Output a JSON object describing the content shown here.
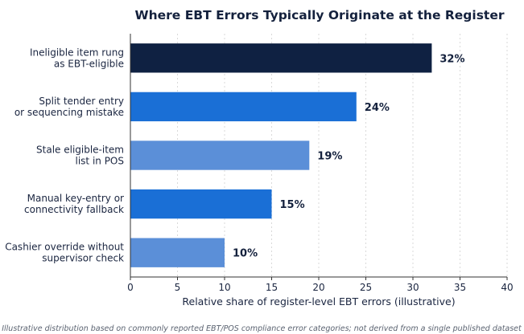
{
  "chart_data": {
    "type": "bar",
    "orientation": "horizontal",
    "title": "Where EBT Errors Typically Originate at the Register",
    "xlabel": "Relative share of register-level EBT errors (illustrative)",
    "ylabel": "",
    "xlim": [
      0,
      40
    ],
    "xticks": [
      0,
      5,
      10,
      15,
      20,
      25,
      30,
      35,
      40
    ],
    "grid": "vertical",
    "categories": [
      [
        "Ineligible item rung",
        "as EBT-eligible"
      ],
      [
        "Split tender entry",
        "or sequencing mistake"
      ],
      [
        "Stale eligible-item",
        "list in POS"
      ],
      [
        "Manual key-entry or",
        "connectivity fallback"
      ],
      [
        "Cashier override without",
        "supervisor check"
      ]
    ],
    "values": [
      32,
      24,
      19,
      15,
      10
    ],
    "data_labels": [
      "32%",
      "24%",
      "19%",
      "15%",
      "10%"
    ],
    "colors": [
      "#0f2142",
      "#1a6fd6",
      "#5b8fd8",
      "#1a6fd6",
      "#5b8fd8"
    ],
    "footnote": "Illustrative distribution based on commonly reported EBT/POS compliance error categories; not derived from a single published dataset"
  }
}
